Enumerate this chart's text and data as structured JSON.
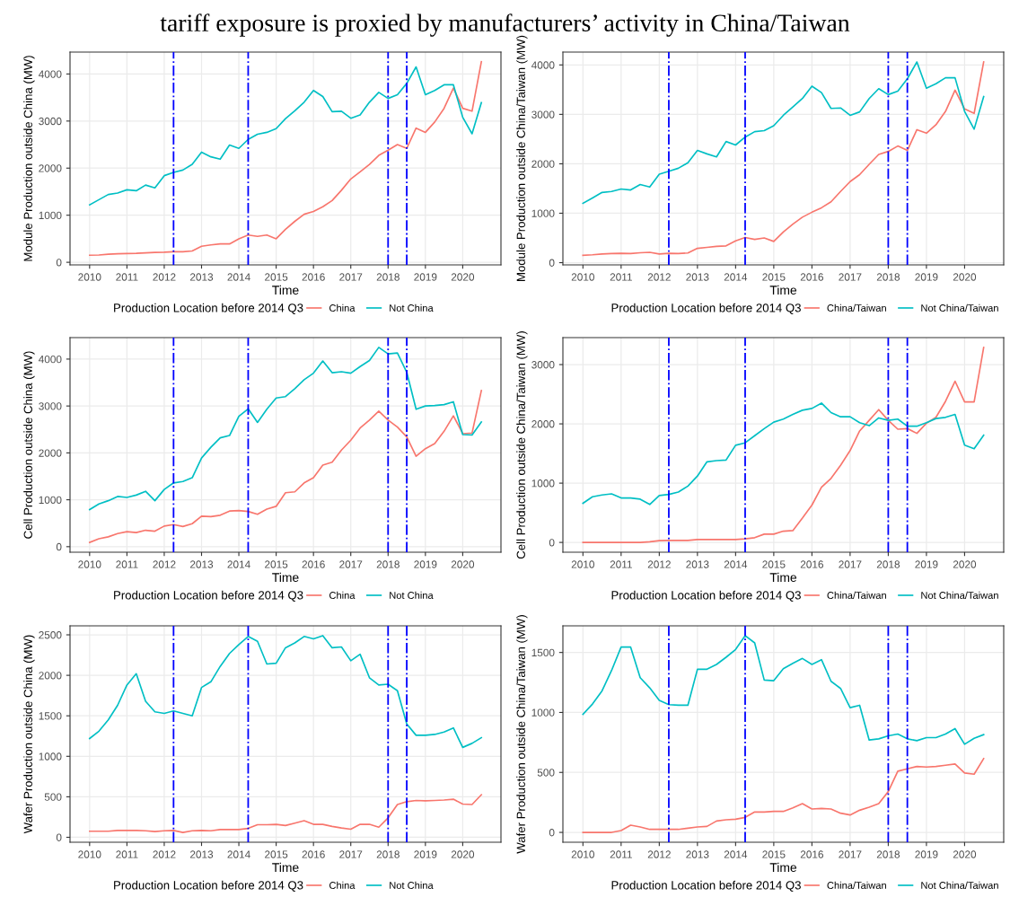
{
  "chart_data": [
    {
      "type": "line",
      "title": "tariff exposure is proxied by manufacturers’ activity in China/Taiwan",
      "xlabel": "Time",
      "ylabel": "Module Production outside China (MW)",
      "legend_title": "Production Location before 2014 Q3",
      "legend": "bottom",
      "grid": true,
      "x": [
        2010,
        2010.25,
        2010.5,
        2010.75,
        2011,
        2011.25,
        2011.5,
        2011.75,
        2012,
        2012.25,
        2012.5,
        2012.75,
        2013,
        2013.25,
        2013.5,
        2013.75,
        2014,
        2014.25,
        2014.5,
        2014.75,
        2015,
        2015.25,
        2015.5,
        2015.75,
        2016,
        2016.25,
        2016.5,
        2016.75,
        2017,
        2017.25,
        2017.5,
        2017.75,
        2018,
        2018.25,
        2018.5,
        2018.75,
        2019,
        2019.25,
        2019.5,
        2019.75,
        2020,
        2020.25,
        2020.5
      ],
      "xlim": [
        2009.475,
        2021.025
      ],
      "xticks": [
        2010,
        2011,
        2012,
        2013,
        2014,
        2015,
        2016,
        2017,
        2018,
        2019,
        2020
      ],
      "ylim": [
        -55,
        4465
      ],
      "yticks": [
        0,
        1000,
        2000,
        3000,
        4000
      ],
      "ref_lines": [
        {
          "axis": "x",
          "value": 2012.25,
          "color": "#0000ff",
          "line_style": "dashdot"
        },
        {
          "axis": "x",
          "value": 2014.25,
          "color": "#0000ff",
          "line_style": "dashdot"
        },
        {
          "axis": "x",
          "value": 2018,
          "color": "#0000ff",
          "line_style": "dashdot"
        },
        {
          "axis": "x",
          "value": 2018.5,
          "color": "#0000ff",
          "line_style": "dashdot"
        }
      ],
      "series": [
        {
          "name": "China",
          "color": "#f8766d",
          "values": [
            150,
            155,
            170,
            180,
            185,
            190,
            200,
            210,
            215,
            225,
            225,
            240,
            340,
            370,
            390,
            390,
            500,
            580,
            550,
            580,
            500,
            700,
            870,
            1020,
            1080,
            1180,
            1310,
            1530,
            1770,
            1920,
            2080,
            2270,
            2380,
            2500,
            2420,
            2850,
            2760,
            2980,
            3270,
            3700,
            3270,
            3210,
            4260
          ]
        },
        {
          "name": "Not China",
          "color": "#00bfc4",
          "values": [
            1220,
            1330,
            1440,
            1470,
            1540,
            1520,
            1640,
            1580,
            1840,
            1910,
            1960,
            2080,
            2340,
            2240,
            2190,
            2490,
            2420,
            2610,
            2720,
            2760,
            2840,
            3050,
            3220,
            3400,
            3650,
            3520,
            3200,
            3210,
            3060,
            3130,
            3400,
            3610,
            3480,
            3560,
            3800,
            4150,
            3560,
            3650,
            3770,
            3770,
            3080,
            2730,
            3390
          ]
        }
      ]
    },
    {
      "type": "line",
      "xlabel": "Time",
      "ylabel": "Module Production outside China/Taiwan (MW)",
      "legend_title": "Production Location before 2014 Q3",
      "legend": "bottom",
      "grid": true,
      "x": [
        2010,
        2010.25,
        2010.5,
        2010.75,
        2011,
        2011.25,
        2011.5,
        2011.75,
        2012,
        2012.25,
        2012.5,
        2012.75,
        2013,
        2013.25,
        2013.5,
        2013.75,
        2014,
        2014.25,
        2014.5,
        2014.75,
        2015,
        2015.25,
        2015.5,
        2015.75,
        2016,
        2016.25,
        2016.5,
        2016.75,
        2017,
        2017.25,
        2017.5,
        2017.75,
        2018,
        2018.25,
        2018.5,
        2018.75,
        2019,
        2019.25,
        2019.5,
        2019.75,
        2020,
        2020.25,
        2020.5
      ],
      "xlim": [
        2009.475,
        2021.025
      ],
      "xticks": [
        2010,
        2011,
        2012,
        2013,
        2014,
        2015,
        2016,
        2017,
        2018,
        2019,
        2020
      ],
      "ylim": [
        -45,
        4260
      ],
      "yticks": [
        0,
        1000,
        2000,
        3000,
        4000
      ],
      "ref_lines": [
        {
          "axis": "x",
          "value": 2012.25,
          "color": "#0000ff",
          "line_style": "dashdot"
        },
        {
          "axis": "x",
          "value": 2014.25,
          "color": "#0000ff",
          "line_style": "dashdot"
        },
        {
          "axis": "x",
          "value": 2018,
          "color": "#0000ff",
          "line_style": "dashdot"
        },
        {
          "axis": "x",
          "value": 2018.5,
          "color": "#0000ff",
          "line_style": "dashdot"
        }
      ],
      "series": [
        {
          "name": "China/Taiwan",
          "color": "#f8766d",
          "values": [
            150,
            160,
            175,
            185,
            190,
            185,
            200,
            210,
            175,
            190,
            185,
            195,
            290,
            310,
            330,
            340,
            440,
            510,
            470,
            500,
            430,
            620,
            780,
            920,
            1020,
            1110,
            1230,
            1440,
            1640,
            1780,
            1990,
            2190,
            2250,
            2360,
            2270,
            2690,
            2620,
            2790,
            3060,
            3490,
            3110,
            3020,
            4060
          ]
        },
        {
          "name": "Not China/Taiwan",
          "color": "#00bfc4",
          "values": [
            1200,
            1310,
            1420,
            1440,
            1490,
            1470,
            1580,
            1530,
            1790,
            1850,
            1910,
            2020,
            2270,
            2200,
            2140,
            2450,
            2380,
            2540,
            2650,
            2670,
            2770,
            2980,
            3150,
            3320,
            3570,
            3440,
            3120,
            3130,
            2980,
            3050,
            3320,
            3520,
            3400,
            3470,
            3720,
            4060,
            3530,
            3620,
            3740,
            3740,
            3060,
            2700,
            3360
          ]
        }
      ]
    },
    {
      "type": "line",
      "xlabel": "Time",
      "ylabel": "Cell Production outside China (MW)",
      "legend_title": "Production Location before 2014 Q3",
      "legend": "bottom",
      "grid": true,
      "x": [
        2010,
        2010.25,
        2010.5,
        2010.75,
        2011,
        2011.25,
        2011.5,
        2011.75,
        2012,
        2012.25,
        2012.5,
        2012.75,
        2013,
        2013.25,
        2013.5,
        2013.75,
        2014,
        2014.25,
        2014.5,
        2014.75,
        2015,
        2015.25,
        2015.5,
        2015.75,
        2016,
        2016.25,
        2016.5,
        2016.75,
        2017,
        2017.25,
        2017.5,
        2017.75,
        2018,
        2018.25,
        2018.5,
        2018.75,
        2019,
        2019.25,
        2019.5,
        2019.75,
        2020,
        2020.25,
        2020.5
      ],
      "xlim": [
        2009.475,
        2021.025
      ],
      "xticks": [
        2010,
        2011,
        2012,
        2013,
        2014,
        2015,
        2016,
        2017,
        2018,
        2019,
        2020
      ],
      "ylim": [
        -118,
        4458
      ],
      "yticks": [
        0,
        1000,
        2000,
        3000,
        4000
      ],
      "ref_lines": [
        {
          "axis": "x",
          "value": 2012.25,
          "color": "#0000ff",
          "line_style": "dashdot"
        },
        {
          "axis": "x",
          "value": 2014.25,
          "color": "#0000ff",
          "line_style": "dashdot"
        },
        {
          "axis": "x",
          "value": 2018,
          "color": "#0000ff",
          "line_style": "dashdot"
        },
        {
          "axis": "x",
          "value": 2018.5,
          "color": "#0000ff",
          "line_style": "dashdot"
        }
      ],
      "series": [
        {
          "name": "China",
          "color": "#f8766d",
          "values": [
            90,
            170,
            210,
            280,
            320,
            300,
            350,
            330,
            440,
            470,
            430,
            490,
            650,
            640,
            670,
            760,
            770,
            750,
            690,
            800,
            860,
            1150,
            1170,
            1360,
            1470,
            1740,
            1800,
            2060,
            2270,
            2530,
            2700,
            2890,
            2700,
            2550,
            2340,
            1930,
            2090,
            2200,
            2460,
            2790,
            2410,
            2420,
            3330
          ]
        },
        {
          "name": "Not China",
          "color": "#00bfc4",
          "values": [
            790,
            910,
            980,
            1070,
            1050,
            1100,
            1180,
            980,
            1220,
            1360,
            1390,
            1470,
            1890,
            2120,
            2320,
            2370,
            2780,
            2940,
            2650,
            2930,
            3170,
            3200,
            3370,
            3560,
            3700,
            3960,
            3710,
            3730,
            3700,
            3840,
            3970,
            4250,
            4110,
            4130,
            3720,
            2930,
            3000,
            3010,
            3030,
            3090,
            2390,
            2380,
            2660
          ]
        }
      ]
    },
    {
      "type": "line",
      "xlabel": "Time",
      "ylabel": "Cell Production outside China/Taiwan (MW)",
      "legend_title": "Production Location before 2014 Q3",
      "legend": "bottom",
      "grid": true,
      "x": [
        2010,
        2010.25,
        2010.5,
        2010.75,
        2011,
        2011.25,
        2011.5,
        2011.75,
        2012,
        2012.25,
        2012.5,
        2012.75,
        2013,
        2013.25,
        2013.5,
        2013.75,
        2014,
        2014.25,
        2014.5,
        2014.75,
        2015,
        2015.25,
        2015.5,
        2015.75,
        2016,
        2016.25,
        2016.5,
        2016.75,
        2017,
        2017.25,
        2017.5,
        2017.75,
        2018,
        2018.25,
        2018.5,
        2018.75,
        2019,
        2019.25,
        2019.5,
        2019.75,
        2020,
        2020.25,
        2020.5
      ],
      "xlim": [
        2009.475,
        2021.025
      ],
      "xticks": [
        2010,
        2011,
        2012,
        2013,
        2014,
        2015,
        2016,
        2017,
        2018,
        2019,
        2020
      ],
      "ylim": [
        -165,
        3455
      ],
      "yticks": [
        0,
        1000,
        2000,
        3000
      ],
      "ref_lines": [
        {
          "axis": "x",
          "value": 2012.25,
          "color": "#0000ff",
          "line_style": "dashdot"
        },
        {
          "axis": "x",
          "value": 2014.25,
          "color": "#0000ff",
          "line_style": "dashdot"
        },
        {
          "axis": "x",
          "value": 2018,
          "color": "#0000ff",
          "line_style": "dashdot"
        },
        {
          "axis": "x",
          "value": 2018.5,
          "color": "#0000ff",
          "line_style": "dashdot"
        }
      ],
      "series": [
        {
          "name": "China/Taiwan",
          "color": "#f8766d",
          "values": [
            0,
            0,
            0,
            0,
            0,
            0,
            0,
            10,
            30,
            35,
            35,
            35,
            50,
            50,
            50,
            50,
            50,
            60,
            80,
            140,
            140,
            190,
            200,
            410,
            630,
            930,
            1080,
            1300,
            1550,
            1880,
            2060,
            2240,
            2060,
            1910,
            1920,
            1840,
            2010,
            2110,
            2380,
            2720,
            2370,
            2370,
            3290
          ]
        },
        {
          "name": "Not China/Taiwan",
          "color": "#00bfc4",
          "values": [
            660,
            770,
            800,
            820,
            750,
            750,
            730,
            640,
            790,
            810,
            850,
            950,
            1120,
            1360,
            1380,
            1390,
            1640,
            1680,
            1800,
            1920,
            2030,
            2080,
            2160,
            2230,
            2260,
            2350,
            2190,
            2120,
            2120,
            2020,
            1970,
            2100,
            2060,
            2080,
            1960,
            1960,
            2020,
            2090,
            2110,
            2160,
            1640,
            1580,
            1810
          ]
        }
      ]
    },
    {
      "type": "line",
      "xlabel": "Time",
      "ylabel": "Wafer Production outside China (MW)",
      "legend_title": "Production Location before 2014 Q3",
      "legend": "bottom",
      "grid": true,
      "x": [
        2010,
        2010.25,
        2010.5,
        2010.75,
        2011,
        2011.25,
        2011.5,
        2011.75,
        2012,
        2012.25,
        2012.5,
        2012.75,
        2013,
        2013.25,
        2013.5,
        2013.75,
        2014,
        2014.25,
        2014.5,
        2014.75,
        2015,
        2015.25,
        2015.5,
        2015.75,
        2016,
        2016.25,
        2016.5,
        2016.75,
        2017,
        2017.25,
        2017.5,
        2017.75,
        2018,
        2018.25,
        2018.5,
        2018.75,
        2019,
        2019.25,
        2019.5,
        2019.75,
        2020,
        2020.25,
        2020.5
      ],
      "xlim": [
        2009.475,
        2021.025
      ],
      "xticks": [
        2010,
        2011,
        2012,
        2013,
        2014,
        2015,
        2016,
        2017,
        2018,
        2019,
        2020
      ],
      "ylim": [
        -61,
        2611
      ],
      "yticks": [
        0,
        500,
        1000,
        1500,
        2000,
        2500
      ],
      "ref_lines": [
        {
          "axis": "x",
          "value": 2012.25,
          "color": "#0000ff",
          "line_style": "dashdot"
        },
        {
          "axis": "x",
          "value": 2014.25,
          "color": "#0000ff",
          "line_style": "dashdot"
        },
        {
          "axis": "x",
          "value": 2018,
          "color": "#0000ff",
          "line_style": "dashdot"
        },
        {
          "axis": "x",
          "value": 2018.5,
          "color": "#0000ff",
          "line_style": "dashdot"
        }
      ],
      "series": [
        {
          "name": "China",
          "color": "#f8766d",
          "values": [
            75,
            75,
            75,
            85,
            85,
            85,
            80,
            70,
            80,
            85,
            60,
            80,
            85,
            80,
            95,
            95,
            95,
            110,
            155,
            155,
            160,
            145,
            175,
            205,
            160,
            160,
            135,
            115,
            100,
            160,
            160,
            125,
            240,
            405,
            440,
            455,
            450,
            455,
            460,
            470,
            410,
            405,
            525
          ]
        },
        {
          "name": "Not China",
          "color": "#00bfc4",
          "values": [
            1220,
            1310,
            1450,
            1630,
            1880,
            2020,
            1680,
            1550,
            1530,
            1560,
            1530,
            1500,
            1850,
            1920,
            2110,
            2270,
            2380,
            2480,
            2420,
            2140,
            2150,
            2340,
            2400,
            2480,
            2450,
            2490,
            2340,
            2350,
            2180,
            2260,
            1970,
            1880,
            1890,
            1810,
            1400,
            1260,
            1260,
            1270,
            1300,
            1350,
            1110,
            1160,
            1230
          ]
        }
      ]
    },
    {
      "type": "line",
      "xlabel": "Time",
      "ylabel": "Wafer Production outside China/Taiwan (MW)",
      "legend_title": "Production Location before 2014 Q3",
      "legend": "bottom",
      "grid": true,
      "x": [
        2010,
        2010.25,
        2010.5,
        2010.75,
        2011,
        2011.25,
        2011.5,
        2011.75,
        2012,
        2012.25,
        2012.5,
        2012.75,
        2013,
        2013.25,
        2013.5,
        2013.75,
        2014,
        2014.25,
        2014.5,
        2014.75,
        2015,
        2015.25,
        2015.5,
        2015.75,
        2016,
        2016.25,
        2016.5,
        2016.75,
        2017,
        2017.25,
        2017.5,
        2017.75,
        2018,
        2018.25,
        2018.5,
        2018.75,
        2019,
        2019.25,
        2019.5,
        2019.75,
        2020,
        2020.25,
        2020.5
      ],
      "xlim": [
        2009.475,
        2021.025
      ],
      "xticks": [
        2010,
        2011,
        2012,
        2013,
        2014,
        2015,
        2016,
        2017,
        2018,
        2019,
        2020
      ],
      "ylim": [
        -82,
        1722
      ],
      "yticks": [
        0,
        500,
        1000,
        1500
      ],
      "ref_lines": [
        {
          "axis": "x",
          "value": 2012.25,
          "color": "#0000ff",
          "line_style": "dashdot"
        },
        {
          "axis": "x",
          "value": 2014.25,
          "color": "#0000ff",
          "line_style": "dashdot"
        },
        {
          "axis": "x",
          "value": 2018,
          "color": "#0000ff",
          "line_style": "dashdot"
        },
        {
          "axis": "x",
          "value": 2018.5,
          "color": "#0000ff",
          "line_style": "dashdot"
        }
      ],
      "series": [
        {
          "name": "China/Taiwan",
          "color": "#f8766d",
          "values": [
            0,
            0,
            0,
            0,
            15,
            60,
            45,
            25,
            25,
            25,
            25,
            35,
            45,
            50,
            95,
            105,
            110,
            125,
            170,
            170,
            175,
            175,
            205,
            240,
            195,
            200,
            195,
            160,
            145,
            185,
            210,
            240,
            340,
            510,
            530,
            550,
            545,
            550,
            560,
            570,
            495,
            485,
            615
          ]
        },
        {
          "name": "Not China/Taiwan",
          "color": "#00bfc4",
          "values": [
            985,
            1070,
            1180,
            1350,
            1545,
            1545,
            1290,
            1205,
            1100,
            1065,
            1060,
            1060,
            1360,
            1360,
            1400,
            1460,
            1525,
            1640,
            1580,
            1270,
            1265,
            1365,
            1410,
            1450,
            1400,
            1440,
            1260,
            1200,
            1040,
            1060,
            770,
            780,
            805,
            820,
            780,
            765,
            790,
            790,
            820,
            865,
            735,
            785,
            815
          ]
        }
      ]
    }
  ]
}
